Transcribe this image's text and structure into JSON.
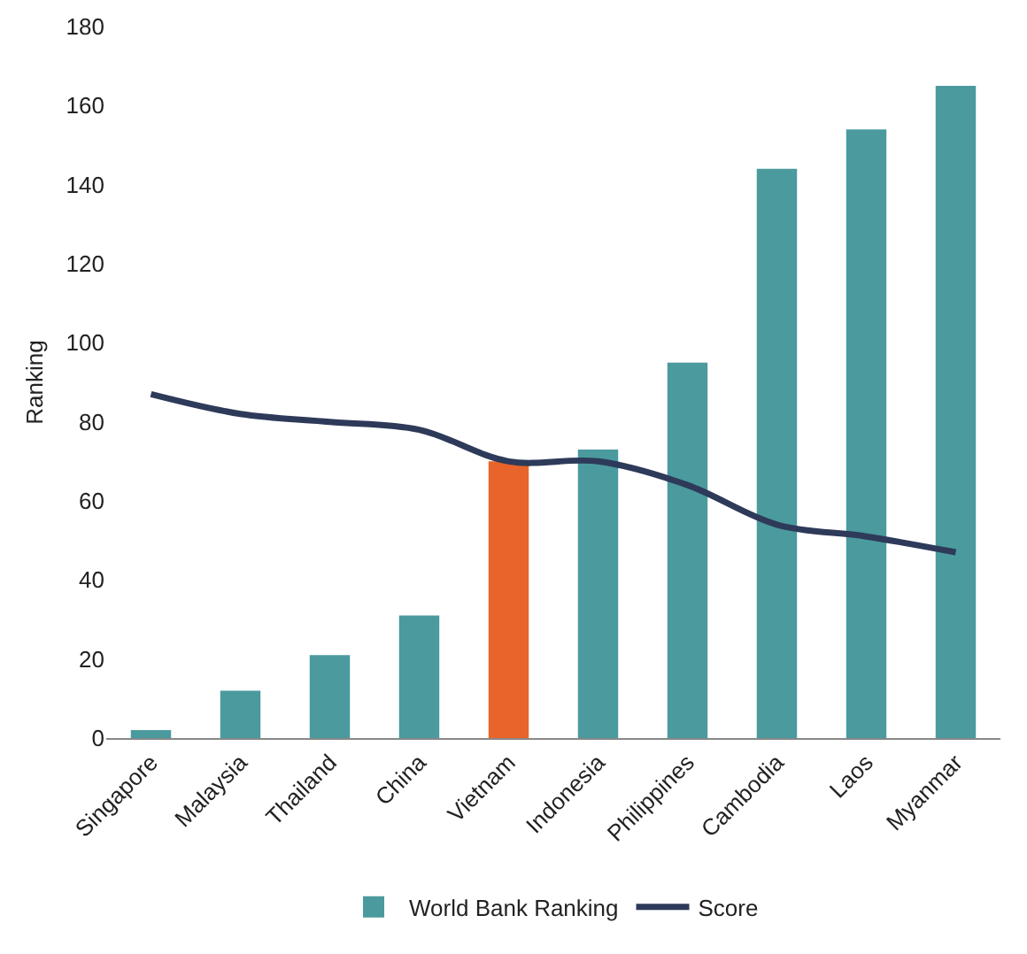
{
  "chart_data": {
    "type": "bar",
    "ylabel": "Ranking",
    "categories": [
      "Singapore",
      "Malaysia",
      "Thailand",
      "China",
      "Vietnam",
      "Indonesia",
      "Philippines",
      "Cambodia",
      "Laos",
      "Myanmar"
    ],
    "series": [
      {
        "name": "World Bank Ranking",
        "color": "#4a9a9e",
        "colors": [
          "#4a9a9e",
          "#4a9a9e",
          "#4a9a9e",
          "#4a9a9e",
          "#e8642a",
          "#4a9a9e",
          "#4a9a9e",
          "#4a9a9e",
          "#4a9a9e",
          "#4a9a9e"
        ],
        "values": [
          2,
          12,
          21,
          31,
          70,
          73,
          95,
          144,
          154,
          165
        ]
      },
      {
        "name": "Score",
        "type": "line",
        "color": "#2e3a59",
        "values": [
          87,
          82,
          80,
          78,
          70,
          70,
          64,
          54,
          51,
          47
        ]
      }
    ],
    "ylim": [
      0,
      180
    ],
    "yticks": [
      0,
      20,
      40,
      60,
      80,
      100,
      120,
      140,
      160,
      180
    ],
    "grid": false,
    "legend": "bottom",
    "marker": "none",
    "line_style": "solid"
  }
}
